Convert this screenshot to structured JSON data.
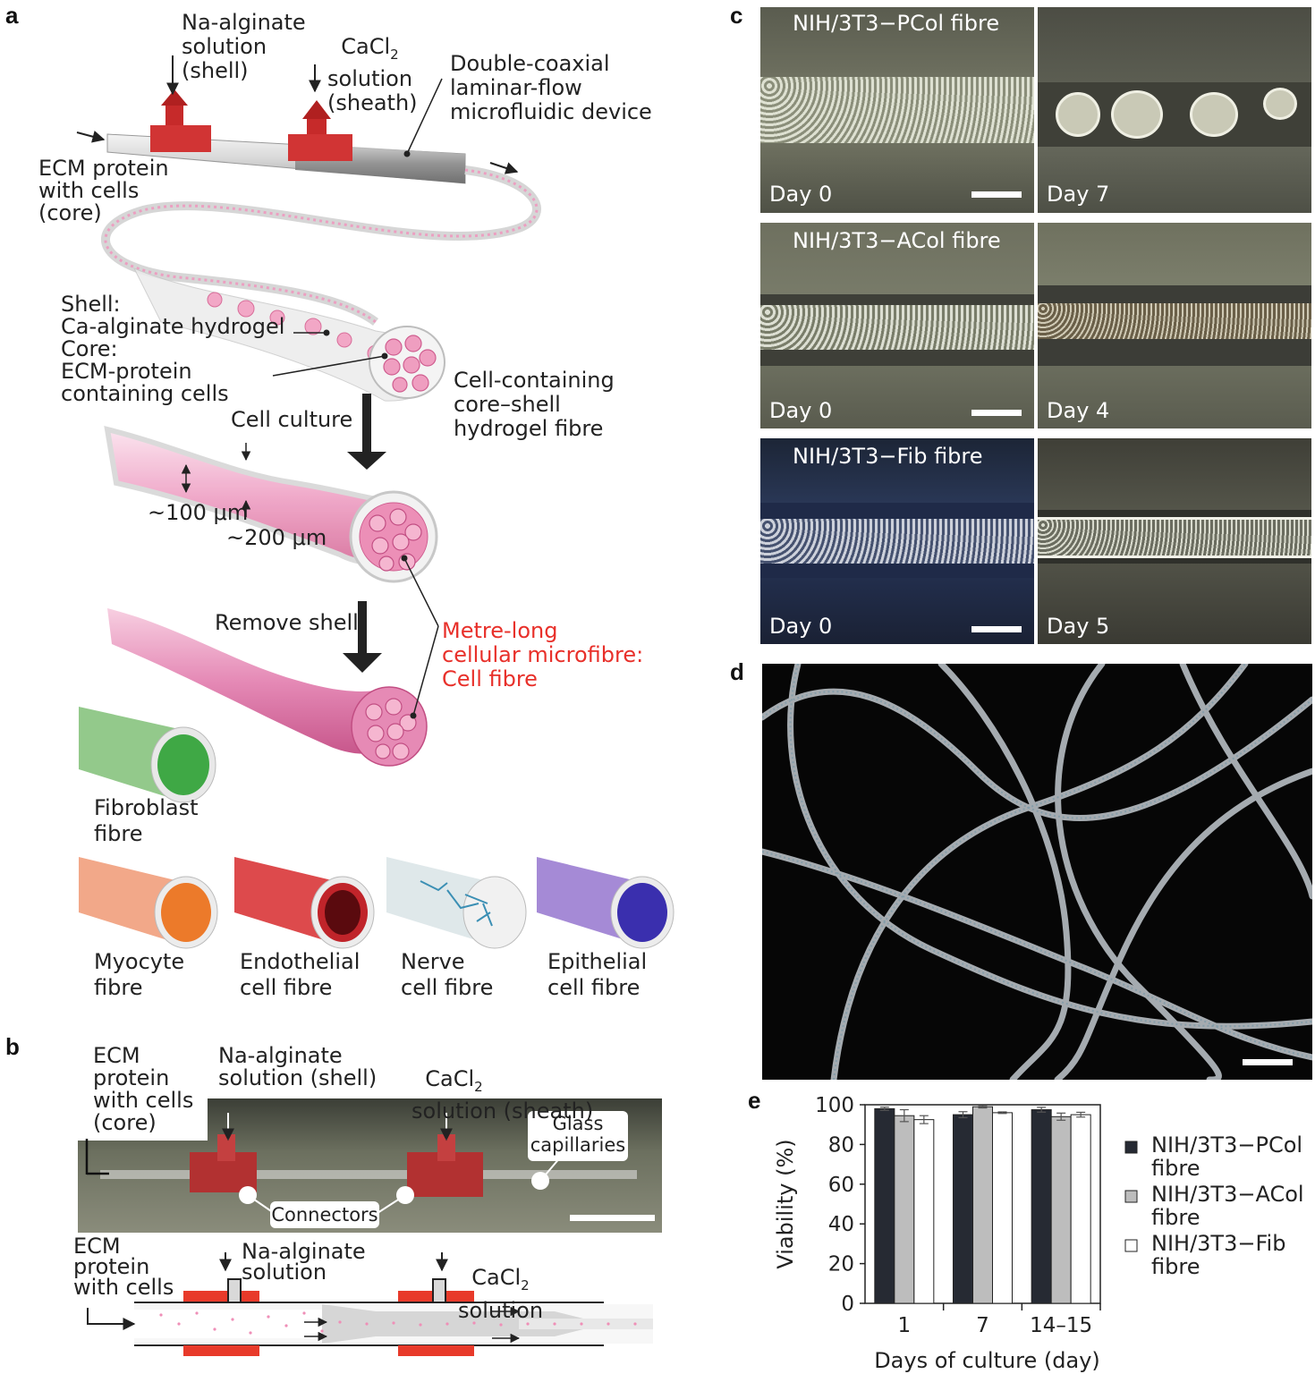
{
  "panels": {
    "a": "a",
    "b": "b",
    "c": "c",
    "d": "d",
    "e": "e"
  },
  "panel_a": {
    "na_alginate": "Na-alginate\nsolution\n(shell)",
    "cacl2": "CaCl",
    "cacl2_sub": "2",
    "cacl2_rest": "solution\n(sheath)",
    "device": "Double-coaxial\nlaminar-flow\nmicrofluidic device",
    "ecm": "ECM protein\nwith cells\n(core)",
    "shell_core": "Shell:\nCa-alginate hydrogel\nCore:\nECM-protein\ncontaining cells",
    "cell_containing": "Cell-containing\ncore–shell\nhydrogel fibre",
    "cell_culture": "Cell culture",
    "d100": "~100 μm",
    "d200": "~200 μm",
    "remove_shell": "Remove shell",
    "metre_long": "Metre-long\ncellular microfibre:\nCell fibre",
    "fibroblast": "Fibroblast\nfibre",
    "myocyte": "Myocyte\nfibre",
    "endothelial": "Endothelial\ncell fibre",
    "nerve": "Nerve\ncell fibre",
    "epithelial": "Epithelial\ncell fibre"
  },
  "panel_b": {
    "ecm": "ECM\nprotein\nwith cells\n(core)",
    "na_alginate": "Na-alginate\nsolution (shell)",
    "cacl2": "CaCl",
    "cacl2_sub": "2",
    "cacl2_rest": "solution (sheath)",
    "glass": "Glass\ncapillaries",
    "connectors": "Connectors",
    "ecm2": "ECM\nprotein\nwith cells",
    "na_alg2": "Na-alginate\nsolution",
    "cacl2_2": "CaCl",
    "cacl2_2_sub": "2",
    "cacl2_2_rest": "solution"
  },
  "panel_c": {
    "rows": [
      {
        "title": "NIH/3T3−PCol fibre",
        "left_day": "Day 0",
        "right_day": "Day 7"
      },
      {
        "title": "NIH/3T3−ACol fibre",
        "left_day": "Day 0",
        "right_day": "Day 4"
      },
      {
        "title": "NIH/3T3−Fib fibre",
        "left_day": "Day 0",
        "right_day": "Day 5"
      }
    ]
  },
  "chart_data": {
    "type": "bar",
    "categories": [
      "1",
      "7",
      "14–15"
    ],
    "series": [
      {
        "name": "NIH/3T3−PCol\nfibre",
        "values": [
          98,
          95,
          97.5
        ],
        "errors": [
          0.8,
          1.5,
          1.2
        ],
        "color": "#262a33"
      },
      {
        "name": "NIH/3T3−ACol\nfibre",
        "values": [
          94.5,
          99,
          94
        ],
        "errors": [
          3.0,
          0.6,
          1.8
        ],
        "color": "#bdbdbd"
      },
      {
        "name": "NIH/3T3−Fib\nfibre",
        "values": [
          92.5,
          96,
          95
        ],
        "errors": [
          2.0,
          0.4,
          1.2
        ],
        "color": "#ffffff"
      }
    ],
    "xlabel": "Days of culture (day)",
    "ylabel": "Viability (%)",
    "ylim": [
      0,
      100
    ],
    "yticks": [
      "0",
      "20",
      "40",
      "60",
      "80",
      "100"
    ],
    "legend": "right"
  }
}
